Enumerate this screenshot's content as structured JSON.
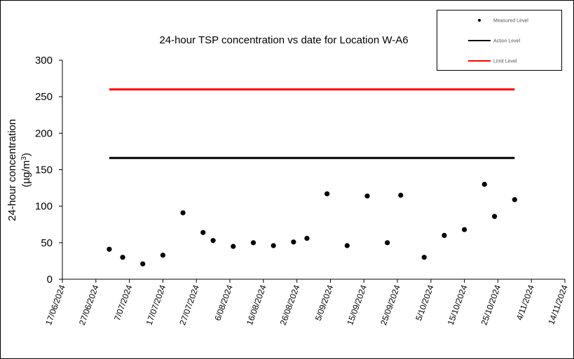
{
  "chart_data": {
    "type": "scatter",
    "title": "24-hour TSP concentration vs date for Location W-A6",
    "xlabel": "",
    "ylabel": "24-hour concentration",
    "ylabel_unit_prefix": "(µg/m",
    "ylabel_unit_sup": "3",
    "ylabel_unit_suffix": ")",
    "ylim": [
      0,
      300
    ],
    "xlim": [
      "2024-06-17",
      "2024-11-14"
    ],
    "y_ticks": [
      "0",
      "50",
      "100",
      "150",
      "200",
      "250",
      "300"
    ],
    "x_ticks": [
      "2024-06-17",
      "2024-06-27",
      "2024-07-07",
      "2024-07-17",
      "2024-07-27",
      "2024-08-06",
      "2024-08-16",
      "2024-08-26",
      "2024-09-05",
      "2024-09-15",
      "2024-09-25",
      "2024-10-05",
      "2024-10-15",
      "2024-10-25",
      "2024-11-04",
      "2024-11-14"
    ],
    "x_tick_labels": [
      "17/06/2024",
      "27/06/2024",
      "7/07/2024",
      "17/07/2024",
      "27/07/2024",
      "6/08/2024",
      "16/08/2024",
      "26/08/2024",
      "5/09/2024",
      "15/09/2024",
      "25/09/2024",
      "5/10/2024",
      "15/10/2024",
      "25/10/2024",
      "4/11/2024",
      "14/11/2024"
    ],
    "grid": false,
    "legend_position": "top-right",
    "series": [
      {
        "name": "Measured Level",
        "color": "#000000",
        "marker": "dot",
        "points": [
          {
            "x": "2024-07-01",
            "y": 41
          },
          {
            "x": "2024-07-05",
            "y": 30
          },
          {
            "x": "2024-07-11",
            "y": 21
          },
          {
            "x": "2024-07-17",
            "y": 33
          },
          {
            "x": "2024-07-23",
            "y": 91
          },
          {
            "x": "2024-07-29",
            "y": 64
          },
          {
            "x": "2024-08-01",
            "y": 53
          },
          {
            "x": "2024-08-07",
            "y": 45
          },
          {
            "x": "2024-08-13",
            "y": 50
          },
          {
            "x": "2024-08-19",
            "y": 46
          },
          {
            "x": "2024-08-25",
            "y": 51
          },
          {
            "x": "2024-08-29",
            "y": 56
          },
          {
            "x": "2024-09-04",
            "y": 117
          },
          {
            "x": "2024-09-10",
            "y": 46
          },
          {
            "x": "2024-09-16",
            "y": 114
          },
          {
            "x": "2024-09-22",
            "y": 50
          },
          {
            "x": "2024-09-26",
            "y": 115
          },
          {
            "x": "2024-10-03",
            "y": 30
          },
          {
            "x": "2024-10-09",
            "y": 60
          },
          {
            "x": "2024-10-15",
            "y": 68
          },
          {
            "x": "2024-10-21",
            "y": 130
          },
          {
            "x": "2024-10-24",
            "y": 86
          },
          {
            "x": "2024-10-30",
            "y": 109
          }
        ]
      },
      {
        "name": "Action Level",
        "color": "#000000",
        "marker": "line",
        "x": [
          "2024-07-01",
          "2024-10-30"
        ],
        "y": [
          166,
          166
        ]
      },
      {
        "name": "Limit Level",
        "color": "#ff0000",
        "marker": "line",
        "x": [
          "2024-07-01",
          "2024-10-30"
        ],
        "y": [
          260,
          260
        ]
      }
    ]
  }
}
